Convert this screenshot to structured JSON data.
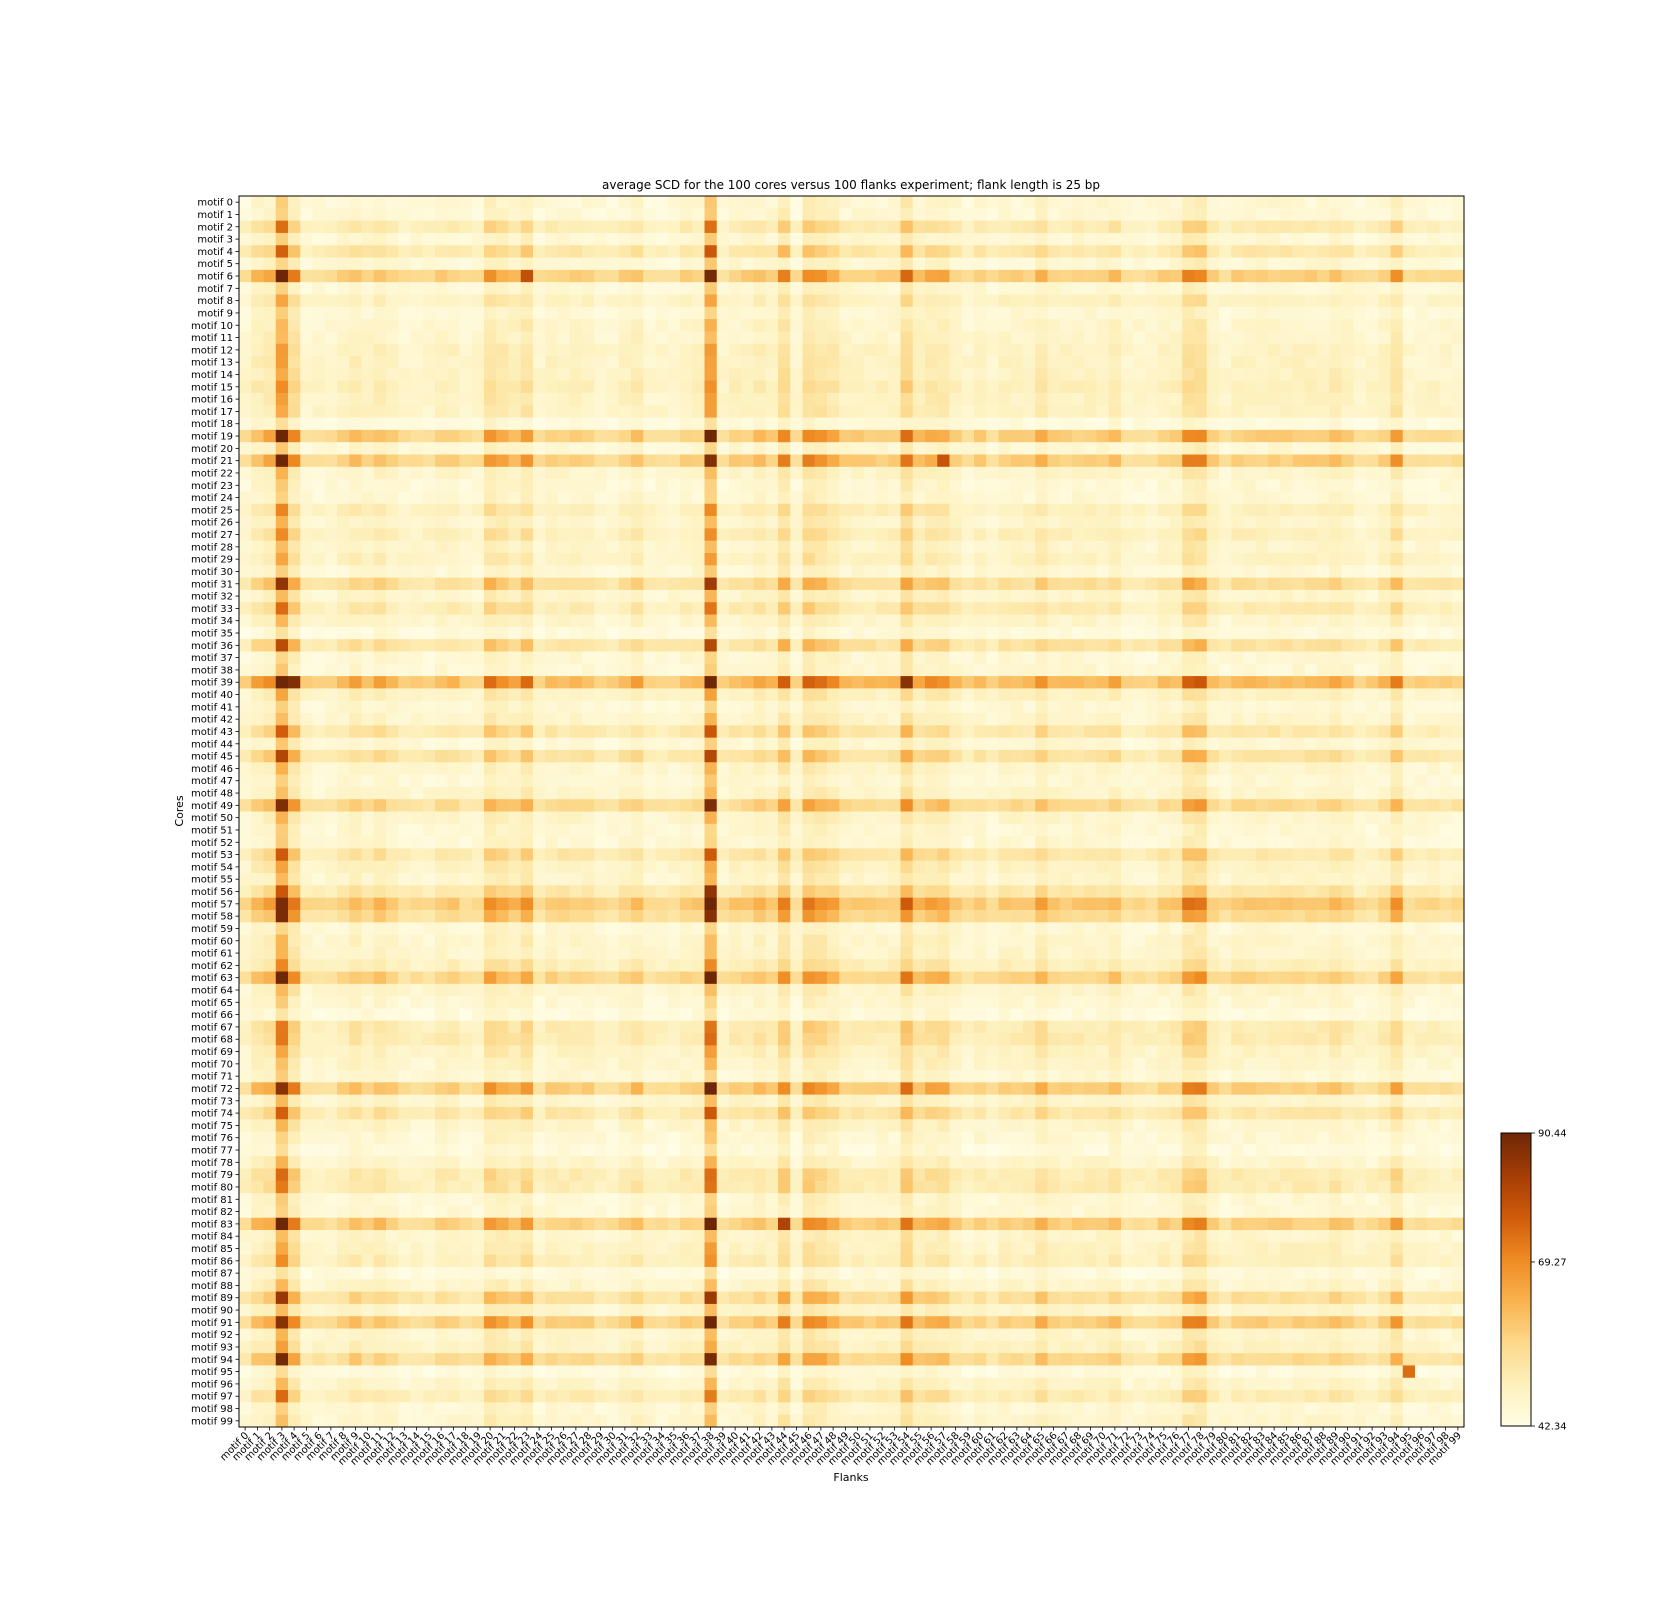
{
  "chart_data": {
    "type": "heatmap",
    "title": "average SCD for the 100 cores versus 100 flanks experiment; flank length is 25 bp",
    "xlabel": "Flanks",
    "ylabel": "Cores",
    "row_label_prefix": "motif ",
    "col_label_prefix": "motif ",
    "n_rows": 100,
    "n_cols": 100,
    "row_labels": [],
    "col_labels": [],
    "colorscale": [
      "#fffde6",
      "#fdf0bb",
      "#fcd88a",
      "#f9b14d",
      "#ee8a22",
      "#cf5a0a",
      "#a43d06",
      "#6e2706"
    ],
    "colorbar": {
      "min": 42.34,
      "max": 90.44,
      "ticks": [
        "90.44",
        "69.27",
        "42.34"
      ],
      "tick_values": [
        90.44,
        69.27,
        42.34
      ]
    },
    "base_value": 44.5,
    "row_effect": {
      "2": 4,
      "4": 5,
      "6": 10,
      "8": 2,
      "11": 1,
      "12": 2,
      "13": 2,
      "14": 2,
      "15": 3,
      "16": 2,
      "17": 2,
      "19": 10,
      "21": 10,
      "25": 3,
      "27": 3,
      "29": 2,
      "31": 7,
      "33": 4,
      "36": 6,
      "39": 13,
      "40": 2,
      "43": 5,
      "45": 6,
      "49": 8,
      "53": 5,
      "56": 5,
      "57": 11,
      "58": 8,
      "62": 3,
      "63": 9,
      "67": 4,
      "68": 4,
      "72": 10,
      "74": 5,
      "79": 4,
      "80": 4,
      "83": 10,
      "86": 3,
      "89": 7,
      "91": 10,
      "94": 8,
      "97": 4,
      "0": 0,
      "1": 0,
      "3": 0,
      "5": 0,
      "7": 0,
      "9": 0,
      "10": 1,
      "18": -1,
      "20": 0,
      "22": 1,
      "23": 0,
      "24": 0,
      "26": 1,
      "28": 1,
      "30": 0,
      "32": 1,
      "34": 1,
      "35": -1,
      "37": 0,
      "38": 0,
      "41": 0,
      "42": 1,
      "44": 0,
      "46": 1,
      "47": 0,
      "48": 1,
      "50": 1,
      "51": 0,
      "52": 0,
      "54": 2,
      "55": 1,
      "59": 0,
      "60": 1,
      "61": 1,
      "64": 1,
      "65": 0,
      "66": -1,
      "69": 2,
      "70": 1,
      "71": 0,
      "73": 1,
      "75": 1,
      "76": 0,
      "77": -1,
      "78": 1,
      "81": 0,
      "82": 0,
      "84": 1,
      "85": 2,
      "87": -1,
      "88": 1,
      "90": 1,
      "92": 1,
      "93": 2,
      "95": -1,
      "96": 1,
      "98": 0,
      "99": 1
    },
    "col_effect": {
      "1": 2,
      "2": 3,
      "3": 13,
      "4": 5,
      "8": 1,
      "9": 2,
      "11": 2,
      "12": 1,
      "20": 4,
      "21": 3,
      "23": 4,
      "27": 1,
      "32": 2,
      "37": 1,
      "38": 13,
      "41": 1,
      "42": 2,
      "44": 5,
      "46": 5,
      "47": 4,
      "48": 3,
      "54": 6,
      "56": 3,
      "57": 3,
      "65": 3,
      "71": 2,
      "77": 5,
      "78": 5,
      "82": 1,
      "84": 1,
      "89": 2,
      "94": 4,
      "0": 0,
      "5": 0,
      "6": 0,
      "7": 0,
      "10": 1,
      "13": 0,
      "14": 0,
      "15": 0,
      "16": 1,
      "17": 1,
      "18": 0,
      "19": 0,
      "22": 2,
      "24": 0,
      "25": 1,
      "26": 1,
      "28": 1,
      "29": 0,
      "30": 0,
      "31": 1,
      "33": 0,
      "34": 0,
      "35": 0,
      "36": 1,
      "39": 0,
      "40": 1,
      "43": 1,
      "45": 0,
      "49": 1,
      "50": 1,
      "51": 1,
      "52": 1,
      "53": 1,
      "55": 2,
      "58": 1,
      "59": 0,
      "60": 1,
      "61": 0,
      "62": 1,
      "63": 1,
      "64": 1,
      "66": 1,
      "67": 1,
      "68": 1,
      "69": 1,
      "70": 1,
      "72": 0,
      "73": 0,
      "74": 0,
      "75": 1,
      "76": 1,
      "79": 1,
      "80": 0,
      "81": 1,
      "83": 1,
      "85": 1,
      "86": 1,
      "87": 1,
      "88": 1,
      "90": 1,
      "91": 0,
      "92": 0,
      "93": 1,
      "95": 0,
      "96": 0,
      "97": 0,
      "98": 0,
      "99": 0
    },
    "interaction_scale": 0.45,
    "highlight_cells": [
      {
        "row": 39,
        "col": 3,
        "value": 90.4
      },
      {
        "row": 39,
        "col": 4,
        "value": 88.0
      },
      {
        "row": 6,
        "col": 38,
        "value": 89.5
      },
      {
        "row": 21,
        "col": 38,
        "value": 88.0
      },
      {
        "row": 57,
        "col": 3,
        "value": 89.0
      },
      {
        "row": 39,
        "col": 54,
        "value": 87.0
      },
      {
        "row": 95,
        "col": 95,
        "value": 74.0
      },
      {
        "row": 21,
        "col": 57,
        "value": 78.0
      },
      {
        "row": 6,
        "col": 23,
        "value": 79.0
      },
      {
        "row": 56,
        "col": 38,
        "value": 86.0
      },
      {
        "row": 72,
        "col": 3,
        "value": 87.0
      },
      {
        "row": 91,
        "col": 3,
        "value": 87.0
      },
      {
        "row": 83,
        "col": 44,
        "value": 82.0
      }
    ]
  }
}
